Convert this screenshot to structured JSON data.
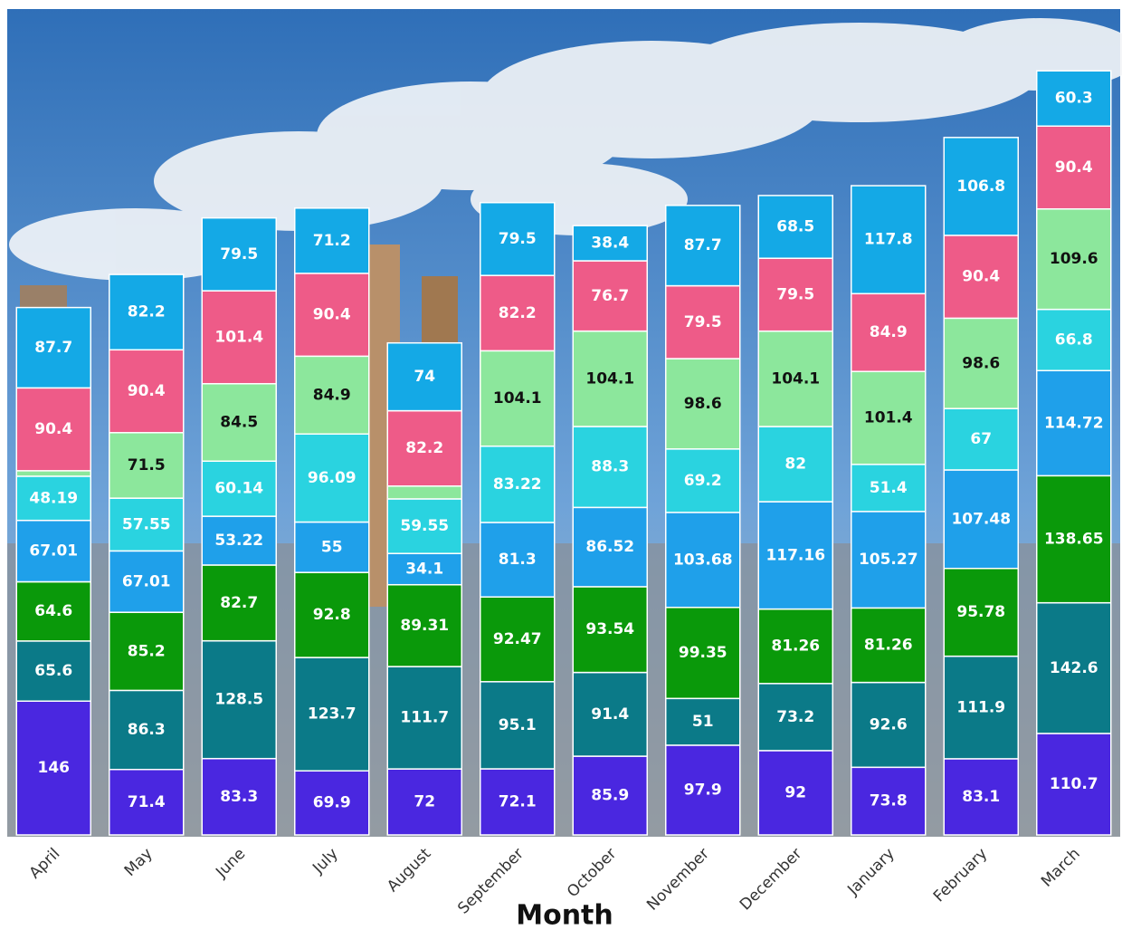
{
  "chart_data": {
    "type": "stacked_bar",
    "x_label": "Month",
    "categories": [
      "April",
      "May",
      "June",
      "July",
      "August",
      "September",
      "October",
      "November",
      "December",
      "January",
      "February",
      "March"
    ],
    "series": [
      {
        "color": "#4a27e0",
        "values": [
          146,
          71.4,
          83.3,
          69.9,
          72,
          72.1,
          85.9,
          97.9,
          92,
          73.8,
          83.1,
          110.7
        ]
      },
      {
        "color": "#0b7a88",
        "values": [
          65.6,
          86.3,
          128.5,
          123.7,
          111.7,
          95.1,
          91.4,
          51,
          73.2,
          92.6,
          111.9,
          142.6
        ]
      },
      {
        "color": "#0a990a",
        "values": [
          64.6,
          85.2,
          82.7,
          92.8,
          89.31,
          92.47,
          93.54,
          99.35,
          81.26,
          81.26,
          95.78,
          138.65
        ]
      },
      {
        "color": "#1fa0ea",
        "values": [
          67.01,
          67.01,
          53.22,
          55,
          34.1,
          81.3,
          86.52,
          103.68,
          117.16,
          105.27,
          107.48,
          114.72
        ]
      },
      {
        "color": "#2ad3e0",
        "values": [
          48.19,
          57.55,
          60.14,
          96.09,
          59.55,
          83.22,
          88.3,
          69.2,
          82,
          51.4,
          67,
          66.8
        ]
      },
      {
        "color": "#8ce79c",
        "values": [
          6,
          71.5,
          84.5,
          84.9,
          14,
          104.1,
          104.1,
          98.6,
          104.1,
          101.4,
          98.6,
          109.6
        ]
      },
      {
        "color": "#ee5b88",
        "values": [
          90.4,
          90.4,
          101.4,
          90.4,
          82.2,
          82.2,
          76.7,
          79.5,
          79.5,
          84.9,
          90.4,
          90.4
        ]
      },
      {
        "color": "#14a9e6",
        "values": [
          87.7,
          82.2,
          79.5,
          71.2,
          74,
          79.5,
          38.4,
          87.7,
          68.5,
          117.8,
          106.8,
          60.3
        ]
      }
    ]
  }
}
